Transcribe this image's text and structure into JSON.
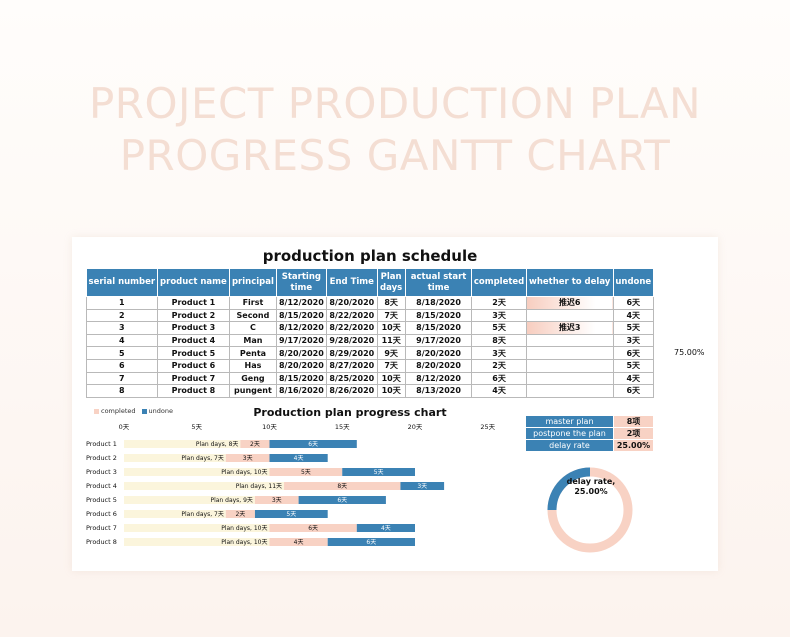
{
  "hero": {
    "line1": "PROJECT PRODUCTION PLAN",
    "line2": "PROGRESS GANTT CHART"
  },
  "schedule": {
    "title": "production plan schedule",
    "headers": [
      "serial number",
      "product name",
      "principal",
      "Starting time",
      "End Time",
      "Plan days",
      "actual start time",
      "completed",
      "whether to delay",
      "undone"
    ],
    "rows": [
      [
        "1",
        "Product 1",
        "First",
        "8/12/2020",
        "8/20/2020",
        "8天",
        "8/18/2020",
        "2天",
        "推迟6",
        "6天"
      ],
      [
        "2",
        "Product 2",
        "Second",
        "8/15/2020",
        "8/22/2020",
        "7天",
        "8/15/2020",
        "3天",
        "",
        "4天"
      ],
      [
        "3",
        "Product 3",
        "C",
        "8/12/2020",
        "8/22/2020",
        "10天",
        "8/15/2020",
        "5天",
        "推迟3",
        "5天"
      ],
      [
        "4",
        "Product 4",
        "Man",
        "9/17/2020",
        "9/28/2020",
        "11天",
        "9/17/2020",
        "8天",
        "",
        "3天"
      ],
      [
        "5",
        "Product 5",
        "Penta",
        "8/20/2020",
        "8/29/2020",
        "9天",
        "8/20/2020",
        "3天",
        "",
        "6天"
      ],
      [
        "6",
        "Product 6",
        "Has",
        "8/20/2020",
        "8/27/2020",
        "7天",
        "8/20/2020",
        "2天",
        "",
        "5天"
      ],
      [
        "7",
        "Product 7",
        "Geng",
        "8/15/2020",
        "8/25/2020",
        "10天",
        "8/12/2020",
        "6天",
        "",
        "4天"
      ],
      [
        "8",
        "Product 8",
        "pungent",
        "8/16/2020",
        "8/26/2020",
        "10天",
        "8/13/2020",
        "4天",
        "",
        "6天"
      ]
    ],
    "side_percent": "75.00%"
  },
  "gantt": {
    "title": "Production plan progress chart",
    "legend_completed": "completed",
    "legend_undone": "undone",
    "axis_ticks": [
      "0天",
      "5天",
      "10天",
      "15天",
      "20天",
      "25天"
    ],
    "colors": {
      "completed": "#f8d2c4",
      "undone": "#3b82b4",
      "plan": "#fbf5dc"
    }
  },
  "chart_data": {
    "type": "bar",
    "title": "Production plan progress chart",
    "categories": [
      "Product 1",
      "Product 2",
      "Product 3",
      "Product 4",
      "Product 5",
      "Product 6",
      "Product 7",
      "Product 8"
    ],
    "series": [
      {
        "name": "",
        "values": [
          8,
          7,
          10,
          11,
          9,
          7,
          10,
          10
        ]
      },
      {
        "name": "completed",
        "values": [
          2,
          3,
          5,
          8,
          3,
          2,
          6,
          4
        ]
      },
      {
        "name": "undone",
        "values": [
          6,
          4,
          5,
          3,
          6,
          5,
          4,
          6
        ]
      }
    ],
    "plan_labels": [
      "Plan days, 8天",
      "Plan days, 7天",
      "Plan days, 10天",
      "Plan days, 11天",
      "Plan days, 9天",
      "Plan days, 7天",
      "Plan days, 10天",
      "Plan days, 10天"
    ],
    "completed_labels": [
      "2天",
      "3天",
      "5天",
      "8天",
      "3天",
      "2天",
      "6天",
      "4天"
    ],
    "undone_labels": [
      "6天",
      "4天",
      "5天",
      "3天",
      "6天",
      "5天",
      "4天",
      "6天"
    ],
    "xlim": [
      0,
      25
    ],
    "stacked": true
  },
  "summary": {
    "rows": [
      {
        "label": "master plan",
        "value": "8项"
      },
      {
        "label": "postpone the plan",
        "value": "2项"
      },
      {
        "label": "delay rate",
        "value": "25.00%"
      }
    ]
  },
  "donut": {
    "label": "delay rate,",
    "value_text": "25.00%",
    "fraction": 0.25,
    "colors": {
      "filled": "#3b82b4",
      "rest": "#f8d2c4"
    }
  }
}
